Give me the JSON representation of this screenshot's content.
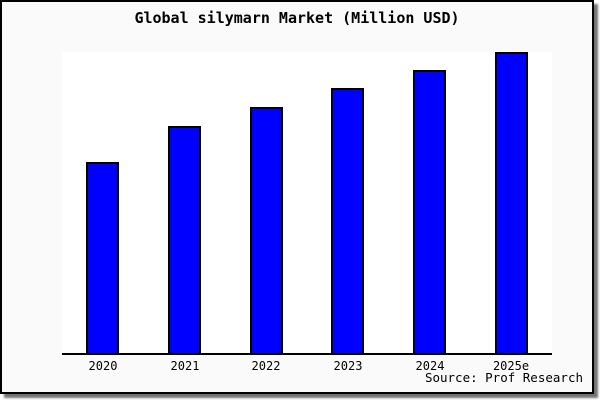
{
  "window": {
    "background_color": "#fafafa",
    "plot_background_color": "#ffffff",
    "frame_border_color": "#000000",
    "shadow_color": "#555555"
  },
  "chart_data": {
    "type": "bar",
    "title": "Global silymarn Market (Million USD)",
    "categories": [
      "2020",
      "2021",
      "2022",
      "2023",
      "2024",
      "2025e"
    ],
    "values": [
      63.3,
      75.5,
      81.6,
      88,
      94,
      100
    ],
    "xlabel": "",
    "ylabel": "",
    "ylim": [
      0,
      100
    ],
    "y_axis_visible": false,
    "grid": false,
    "legend": false,
    "bar_color": "#0000ff",
    "bar_border_color": "#000000",
    "axis_line_color": "#000000"
  },
  "footer": {
    "source_label": "Source: Prof Research"
  }
}
